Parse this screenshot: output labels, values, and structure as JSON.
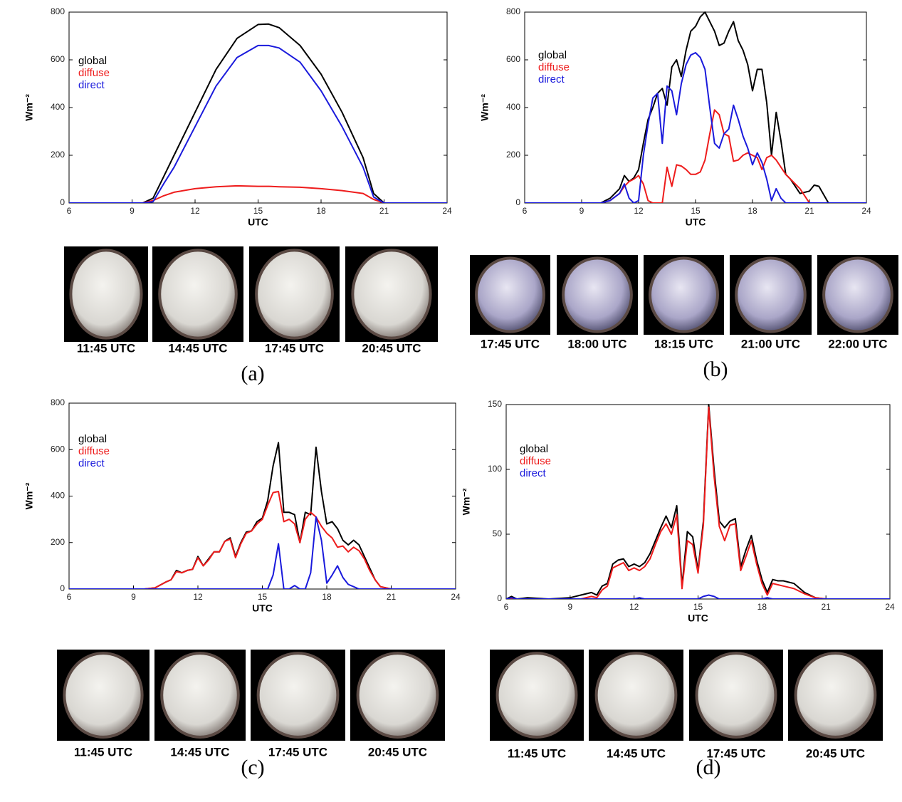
{
  "chart_data": [
    {
      "type": "line",
      "panel_label": "(a)",
      "xlabel": "UTC",
      "ylabel": "Wm⁻²",
      "x": [
        6,
        9,
        9.5,
        10,
        10.5,
        11,
        12,
        13,
        14,
        15,
        15.5,
        16,
        17,
        18,
        19,
        20,
        20.5,
        21,
        24
      ],
      "xlim": [
        6,
        24
      ],
      "xticks": [
        6,
        9,
        12,
        15,
        18,
        21,
        24
      ],
      "ylim": [
        0,
        800
      ],
      "yticks": [
        0,
        200,
        400,
        600,
        800
      ],
      "series": [
        {
          "name": "global",
          "color": "#000000",
          "values": [
            0,
            0,
            0,
            20,
            110,
            200,
            380,
            560,
            690,
            748,
            750,
            735,
            660,
            540,
            380,
            190,
            40,
            0,
            0
          ]
        },
        {
          "name": "diffuse",
          "color": "#ee1c1c",
          "values": [
            0,
            0,
            0,
            10,
            30,
            45,
            60,
            68,
            72,
            70,
            70,
            68,
            66,
            60,
            52,
            40,
            15,
            0,
            0
          ]
        },
        {
          "name": "direct",
          "color": "#1a1adc",
          "values": [
            0,
            0,
            0,
            5,
            80,
            150,
            320,
            490,
            610,
            660,
            660,
            650,
            590,
            470,
            320,
            150,
            25,
            0,
            0
          ]
        }
      ],
      "image_captions": [
        "11:45 UTC",
        "14:45 UTC",
        "17:45 UTC",
        "20:45 UTC"
      ]
    },
    {
      "type": "line",
      "panel_label": "(b)",
      "xlabel": "UTC",
      "ylabel": "Wm⁻²",
      "x": [
        6,
        10,
        10.5,
        11,
        11.25,
        11.5,
        11.75,
        12,
        12.25,
        12.5,
        12.75,
        13,
        13.25,
        13.5,
        13.75,
        14,
        14.25,
        14.5,
        14.75,
        15,
        15.25,
        15.5,
        15.75,
        16,
        16.25,
        16.5,
        16.75,
        17,
        17.25,
        17.5,
        17.75,
        18,
        18.25,
        18.5,
        18.75,
        19,
        19.25,
        19.5,
        19.75,
        20,
        20.5,
        21,
        21.25,
        21.5,
        22,
        24
      ],
      "xlim": [
        6,
        24
      ],
      "xticks": [
        6,
        9,
        12,
        15,
        18,
        21,
        24
      ],
      "ylim": [
        0,
        800
      ],
      "yticks": [
        0,
        200,
        400,
        600,
        800
      ],
      "series": [
        {
          "name": "global",
          "color": "#000000",
          "values": [
            0,
            0,
            20,
            60,
            115,
            90,
            105,
            140,
            250,
            350,
            400,
            460,
            480,
            410,
            570,
            600,
            530,
            640,
            720,
            740,
            780,
            800,
            760,
            720,
            660,
            670,
            720,
            760,
            680,
            640,
            580,
            470,
            560,
            560,
            420,
            200,
            380,
            260,
            120,
            100,
            40,
            50,
            75,
            70,
            0,
            0
          ]
        },
        {
          "name": "diffuse",
          "color": "#ee1c1c",
          "values": [
            0,
            0,
            10,
            40,
            70,
            90,
            100,
            115,
            80,
            10,
            0,
            0,
            0,
            150,
            70,
            160,
            155,
            140,
            120,
            120,
            130,
            180,
            290,
            390,
            370,
            290,
            280,
            175,
            180,
            200,
            210,
            200,
            190,
            140,
            190,
            200,
            180,
            150,
            120,
            100,
            60,
            0,
            0,
            0,
            0,
            0
          ]
        },
        {
          "name": "direct",
          "color": "#1a1adc",
          "values": [
            0,
            0,
            10,
            40,
            80,
            20,
            0,
            10,
            200,
            330,
            440,
            460,
            250,
            490,
            470,
            370,
            500,
            580,
            620,
            630,
            610,
            560,
            400,
            250,
            230,
            290,
            310,
            410,
            350,
            280,
            230,
            160,
            210,
            170,
            100,
            10,
            60,
            20,
            0,
            0,
            0,
            0,
            0,
            0,
            0,
            0
          ]
        }
      ],
      "image_captions": [
        "17:45 UTC",
        "18:00 UTC",
        "18:15 UTC",
        "21:00 UTC",
        "22:00 UTC"
      ]
    },
    {
      "type": "line",
      "panel_label": "(c)",
      "xlabel": "UTC",
      "ylabel": "Wm⁻²",
      "x": [
        6,
        9,
        9.5,
        10,
        10.5,
        10.75,
        11,
        11.25,
        11.5,
        11.75,
        12,
        12.25,
        12.5,
        12.75,
        13,
        13.25,
        13.5,
        13.75,
        14,
        14.25,
        14.5,
        14.75,
        15,
        15.25,
        15.5,
        15.75,
        16,
        16.25,
        16.5,
        16.75,
        17,
        17.25,
        17.5,
        17.75,
        18,
        18.25,
        18.5,
        18.75,
        19,
        19.25,
        19.5,
        19.75,
        20,
        20.25,
        20.5,
        21,
        24
      ],
      "xlim": [
        6,
        24
      ],
      "xticks": [
        6,
        9,
        12,
        15,
        18,
        21,
        24
      ],
      "ylim": [
        0,
        800
      ],
      "yticks": [
        0,
        200,
        400,
        600,
        800
      ],
      "series": [
        {
          "name": "global",
          "color": "#000000",
          "values": [
            0,
            0,
            0,
            5,
            30,
            40,
            80,
            70,
            80,
            85,
            140,
            100,
            130,
            160,
            160,
            205,
            220,
            140,
            200,
            245,
            250,
            290,
            305,
            380,
            530,
            630,
            330,
            330,
            320,
            200,
            330,
            320,
            610,
            420,
            280,
            290,
            260,
            210,
            190,
            210,
            190,
            140,
            90,
            40,
            10,
            0,
            0
          ]
        },
        {
          "name": "diffuse",
          "color": "#ee1c1c",
          "values": [
            0,
            0,
            0,
            5,
            30,
            40,
            75,
            70,
            80,
            85,
            135,
            100,
            125,
            160,
            160,
            205,
            215,
            135,
            195,
            240,
            250,
            280,
            300,
            360,
            415,
            420,
            290,
            300,
            280,
            200,
            300,
            330,
            310,
            270,
            240,
            220,
            180,
            185,
            160,
            180,
            165,
            130,
            80,
            40,
            10,
            0,
            0
          ]
        },
        {
          "name": "direct",
          "color": "#1a1adc",
          "values": [
            0,
            0,
            0,
            0,
            0,
            0,
            0,
            0,
            0,
            0,
            0,
            0,
            0,
            0,
            0,
            0,
            0,
            0,
            0,
            0,
            0,
            0,
            0,
            0,
            60,
            195,
            0,
            0,
            15,
            0,
            0,
            70,
            310,
            210,
            25,
            60,
            100,
            50,
            20,
            10,
            0,
            0,
            0,
            0,
            0,
            0,
            0
          ]
        }
      ],
      "image_captions": [
        "11:45 UTC",
        "14:45 UTC",
        "17:45 UTC",
        "20:45 UTC"
      ]
    },
    {
      "type": "line",
      "panel_label": "(d)",
      "xlabel": "UTC",
      "ylabel": "Wm⁻²",
      "x": [
        6,
        6.25,
        6.5,
        7,
        8,
        9,
        9.5,
        10,
        10.25,
        10.5,
        10.75,
        11,
        11.25,
        11.5,
        11.75,
        12,
        12.25,
        12.5,
        12.75,
        13,
        13.25,
        13.5,
        13.75,
        14,
        14.25,
        14.5,
        14.75,
        15,
        15.25,
        15.5,
        15.75,
        16,
        16.25,
        16.5,
        16.75,
        17,
        17.25,
        17.5,
        17.75,
        18,
        18.25,
        18.5,
        18.75,
        19,
        19.5,
        20,
        20.5,
        21,
        22,
        23,
        24
      ],
      "xlim": [
        6,
        24
      ],
      "xticks": [
        6,
        9,
        12,
        15,
        18,
        21,
        24
      ],
      "ylim": [
        0,
        150
      ],
      "yticks": [
        0,
        50,
        100,
        150
      ],
      "series": [
        {
          "name": "global",
          "color": "#000000",
          "values": [
            0,
            2,
            0,
            1,
            0,
            1,
            3,
            5,
            3,
            10,
            12,
            27,
            30,
            31,
            25,
            27,
            25,
            28,
            35,
            45,
            55,
            64,
            55,
            72,
            10,
            52,
            48,
            22,
            60,
            150,
            100,
            60,
            55,
            60,
            62,
            25,
            38,
            49,
            30,
            15,
            5,
            15,
            14,
            14,
            12,
            5,
            1,
            0,
            0,
            0,
            0
          ]
        },
        {
          "name": "diffuse",
          "color": "#ee1c1c",
          "values": [
            0,
            0,
            0,
            0,
            0,
            0,
            0,
            2,
            1,
            7,
            10,
            24,
            26,
            28,
            22,
            24,
            22,
            25,
            31,
            42,
            52,
            58,
            50,
            65,
            8,
            45,
            42,
            20,
            57,
            148,
            95,
            56,
            45,
            57,
            58,
            22,
            33,
            45,
            27,
            12,
            3,
            12,
            11,
            10,
            8,
            4,
            1,
            0,
            0,
            0,
            0
          ]
        },
        {
          "name": "direct",
          "color": "#1a1adc",
          "values": [
            0,
            1,
            0,
            0,
            0,
            0,
            0,
            0,
            0,
            0,
            0,
            0,
            0,
            0,
            0,
            0,
            1,
            0,
            0,
            0,
            0,
            0,
            0,
            0,
            0,
            0,
            0,
            0,
            2,
            3,
            2,
            0,
            0,
            0,
            0,
            0,
            0,
            0,
            0,
            0,
            1,
            0,
            0,
            0,
            0,
            0,
            0,
            0,
            0,
            0,
            0
          ]
        }
      ],
      "image_captions": [
        "11:45 UTC",
        "14:45 UTC",
        "17:45 UTC",
        "20:45 UTC"
      ]
    }
  ]
}
